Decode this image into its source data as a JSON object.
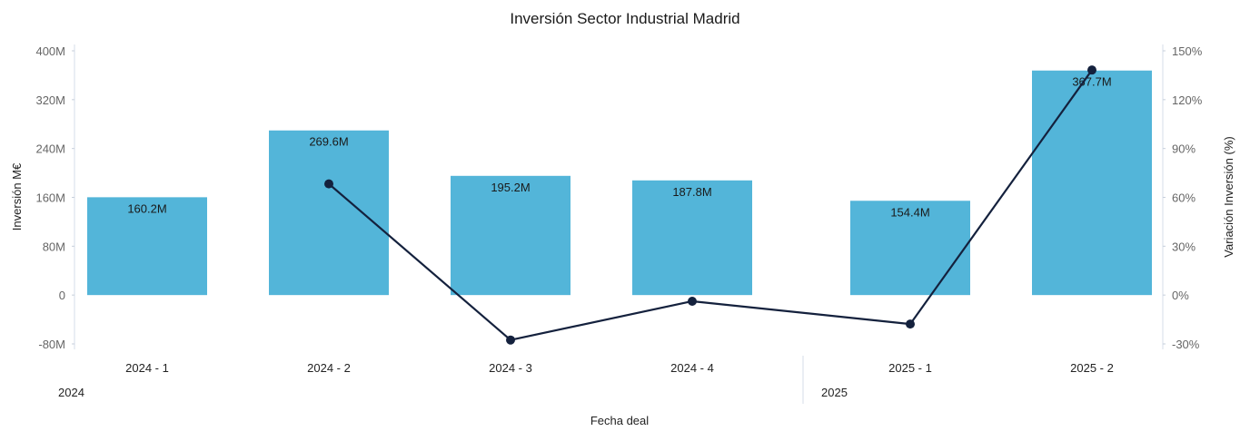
{
  "chart_data": {
    "type": "bar",
    "title": "Inversión Sector Industrial Madrid",
    "xlabel": "Fecha deal",
    "ylabel": "Inversión M€",
    "y2label": "Variación Inversión (%)",
    "categories": [
      "2024 - 1",
      "2024 - 2",
      "2024 - 3",
      "2024 - 4",
      "2025 - 1",
      "2025 - 2"
    ],
    "groups": [
      {
        "label": "2024",
        "start": 0,
        "end": 3
      },
      {
        "label": "2025",
        "start": 4,
        "end": 5
      }
    ],
    "ylim": [
      -80,
      400
    ],
    "yticks": [
      -80,
      0,
      80,
      160,
      240,
      320,
      400
    ],
    "ytick_labels": [
      "-80M",
      "0",
      "80M",
      "160M",
      "240M",
      "320M",
      "400M"
    ],
    "y2lim": [
      -30,
      150
    ],
    "y2ticks": [
      -30,
      0,
      30,
      60,
      90,
      120,
      150
    ],
    "y2tick_labels": [
      "-30%",
      "0%",
      "30%",
      "60%",
      "90%",
      "120%",
      "150%"
    ],
    "series": [
      {
        "type": "bar",
        "values": [
          160.2,
          269.6,
          195.2,
          187.8,
          154.4,
          367.7
        ],
        "labels": [
          "160.2M",
          "269.6M",
          "195.2M",
          "187.8M",
          "154.4M",
          "367.7M"
        ],
        "color": "#53b5d9"
      },
      {
        "type": "line",
        "axis": "y2",
        "values": [
          null,
          68.3,
          -27.6,
          -3.8,
          -17.8,
          138.2
        ],
        "color": "#14213d"
      }
    ],
    "grid": false,
    "legend": "none"
  }
}
